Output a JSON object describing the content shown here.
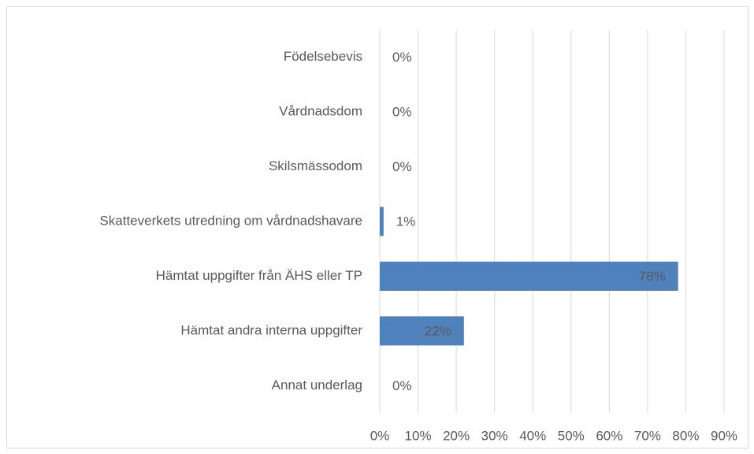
{
  "chart_data": {
    "type": "bar",
    "orientation": "horizontal",
    "categories": [
      "Födelsebevis",
      "Vårdnadsdom",
      "Skilsmässodom",
      "Skatteverkets utredning om vårdnadshavare",
      "Hämtat uppgifter från ÄHS eller TP",
      "Hämtat andra interna uppgifter",
      "Annat underlag"
    ],
    "values": [
      0,
      0,
      0,
      1,
      78,
      22,
      0
    ],
    "value_labels": [
      "0%",
      "0%",
      "0%",
      "1%",
      "78%",
      "22%",
      "0%"
    ],
    "color": "#4f81bd",
    "xlim": [
      0,
      90
    ],
    "xticks": [
      {
        "value": 0,
        "label": "0%"
      },
      {
        "value": 10,
        "label": "10%"
      },
      {
        "value": 20,
        "label": "20%"
      },
      {
        "value": 30,
        "label": "30%"
      },
      {
        "value": 40,
        "label": "40%"
      },
      {
        "value": 50,
        "label": "50%"
      },
      {
        "value": 60,
        "label": "60%"
      },
      {
        "value": 70,
        "label": "70%"
      },
      {
        "value": 80,
        "label": "80%"
      },
      {
        "value": 90,
        "label": "90%"
      }
    ],
    "grid": true
  }
}
